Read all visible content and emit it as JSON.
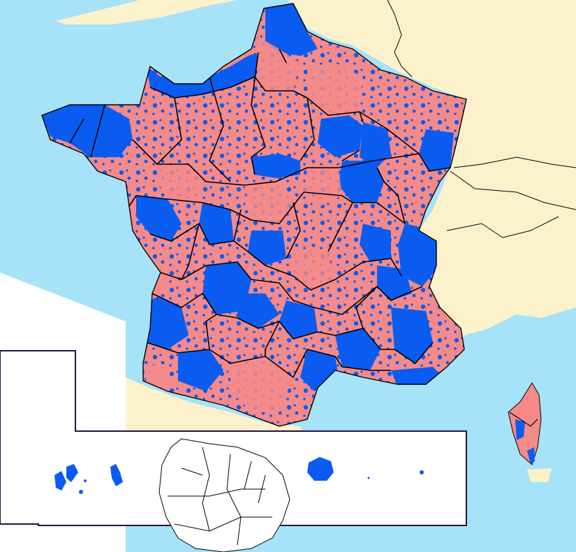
{
  "map": {
    "kind": "choropleth",
    "colors": {
      "sea": "#a6e3f8",
      "land_neighbors": "#fbf2cc",
      "category_a": "#f58a8a",
      "category_b": "#0a5cf0",
      "borders": "#000000",
      "inset_frame": "#2a0f45",
      "inset_background": "#ffffff"
    },
    "regions": [
      {
        "name": "metropolitan-france",
        "dominant_color": "#0a5cf0",
        "mixed_with": "#f58a8a"
      },
      {
        "name": "corsica",
        "dominant_color": "#f58a8a",
        "mixed_with": "#0a5cf0"
      },
      {
        "name": "guadeloupe",
        "dominant_color": "#0a5cf0"
      },
      {
        "name": "martinique",
        "dominant_color": "#0a5cf0"
      },
      {
        "name": "french-guiana",
        "dominant_color": "#ffffff"
      },
      {
        "name": "reunion",
        "dominant_color": "#0a5cf0"
      },
      {
        "name": "mayotte",
        "dominant_color": "#0a5cf0"
      }
    ]
  }
}
